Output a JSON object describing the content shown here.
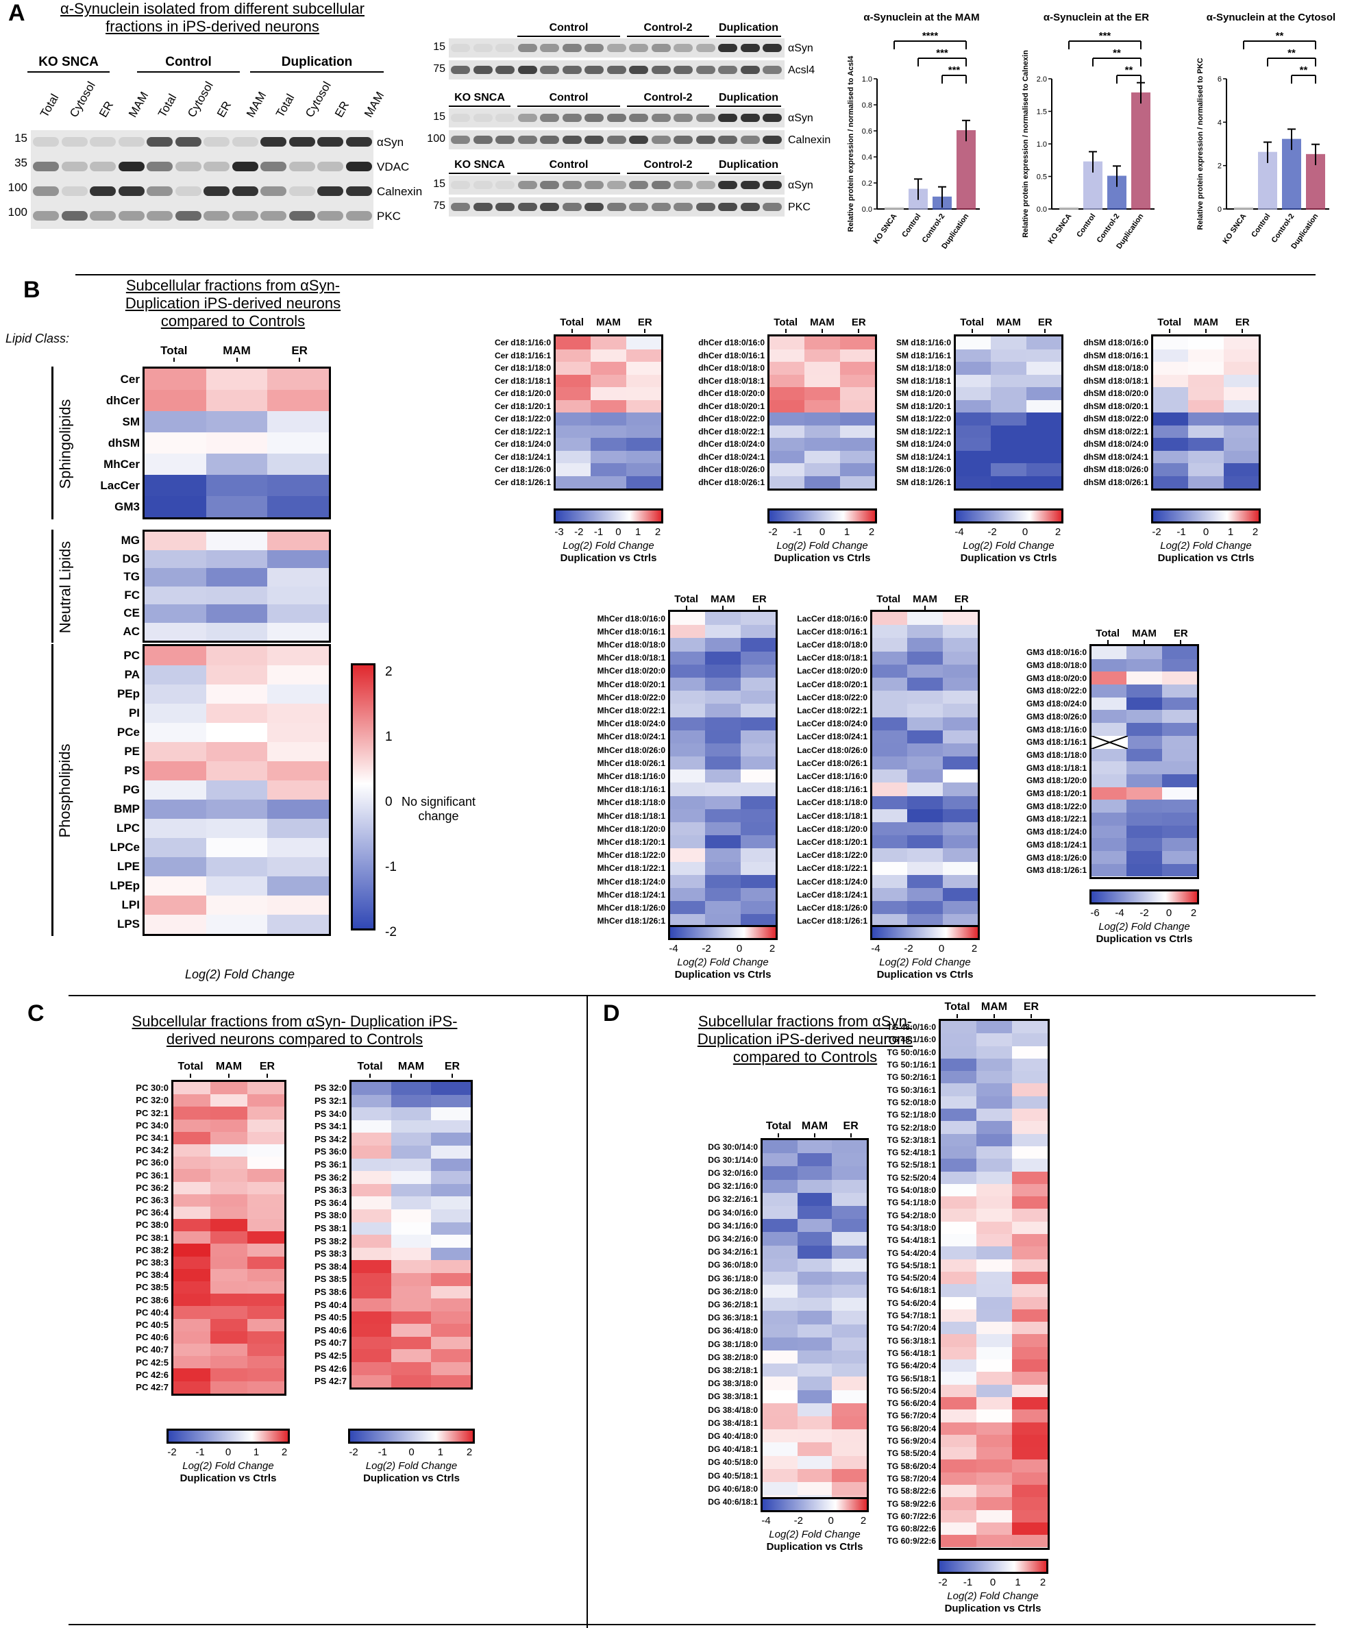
{
  "panels": {
    "a": "A",
    "b": "B",
    "c": "C",
    "d": "D"
  },
  "panelA": {
    "title": "α-Synuclein isolated from different subcellular fractions in iPS-derived neurons",
    "blot1": {
      "groups": [
        "KO SNCA",
        "Control",
        "Duplication"
      ],
      "lanes": [
        "Total",
        "Cytosol",
        "ER",
        "MAM",
        "Total",
        "Cytosol",
        "ER",
        "MAM",
        "Total",
        "Cytosol",
        "ER",
        "MAM"
      ],
      "markers": [
        "15",
        "35",
        "100",
        "100"
      ],
      "bands": [
        "αSyn",
        "VDAC",
        "Calnexin",
        "PKC"
      ]
    },
    "blot2": {
      "groups": [
        "KO SNCA",
        "Control",
        "Control-2",
        "Duplication"
      ],
      "rows": [
        {
          "markers": [
            "15",
            "75"
          ],
          "bands": [
            "αSyn",
            "Acsl4"
          ]
        },
        {
          "markers": [
            "15",
            "100"
          ],
          "bands": [
            "αSyn",
            "Calnexin"
          ]
        },
        {
          "markers": [
            "15",
            "75"
          ],
          "bands": [
            "αSyn",
            "PKC"
          ]
        }
      ]
    },
    "bars": [
      {
        "title": "α-Synuclein at the MAM",
        "ylabel": "Relative protein expression / normalised to Acsl4",
        "ylim": [
          0,
          1.0
        ],
        "ticks": [
          "0.0",
          "0.2",
          "0.4",
          "0.6",
          "0.8",
          "1.0"
        ],
        "categories": [
          "KO SNCA",
          "Control",
          "Control-2",
          "Duplication"
        ],
        "values": [
          0.0,
          0.15,
          0.09,
          0.6
        ],
        "sig": [
          "****",
          "***",
          "***"
        ]
      },
      {
        "title": "α-Synuclein at the ER",
        "ylabel": "Relative protein expression / normalised to Calnexin",
        "ylim": [
          0,
          2.0
        ],
        "ticks": [
          "0.0",
          "0.5",
          "1.0",
          "1.5",
          "2.0"
        ],
        "categories": [
          "KO SNCA",
          "Control",
          "Control-2",
          "Duplication"
        ],
        "values": [
          0.0,
          0.72,
          0.5,
          1.78
        ],
        "sig": [
          "***",
          "**",
          "**"
        ]
      },
      {
        "title": "α-Synuclein at the Cytosol",
        "ylabel": "Relative protein expression / normalised to PKC",
        "ylim": [
          0,
          6
        ],
        "ticks": [
          "0",
          "2",
          "4",
          "6"
        ],
        "categories": [
          "KO SNCA",
          "Control",
          "Control-2",
          "Duplication"
        ],
        "values": [
          0.0,
          2.6,
          3.2,
          2.5
        ],
        "sig": [
          "**",
          "**",
          "**"
        ]
      }
    ]
  },
  "panelB": {
    "title": "Subcellular fractions from αSyn-Duplication iPS-derived neurons compared to Controls",
    "lipid_class_label": "Lipid Class:",
    "columns": [
      "Total",
      "MAM",
      "ER"
    ],
    "groups": [
      {
        "name": "Sphingolipids",
        "rows": [
          "Cer",
          "dhCer",
          "SM",
          "dhSM",
          "MhCer",
          "LacCer",
          "GM3"
        ]
      },
      {
        "name": "Neutral Lipids",
        "rows": [
          "MG",
          "DG",
          "TG",
          "FC",
          "CE",
          "AC"
        ]
      },
      {
        "name": "Phospholipids",
        "rows": [
          "PC",
          "PA",
          "PEp",
          "PI",
          "PCe",
          "PE",
          "PS",
          "PG",
          "BMP",
          "LPC",
          "LPCe",
          "LPE",
          "LPEp",
          "LPI",
          "LPS"
        ]
      }
    ],
    "colorbar_ticks": [
      "2",
      "1",
      "0",
      "-1",
      "-2"
    ],
    "no_change": "No significant change",
    "axis_label": "Log(2) Fold Change",
    "sub_label": "Duplication vs Ctrls",
    "cer_rows": [
      "Cer d18:1/16:0",
      "Cer d18:1/16:1",
      "Cer d18:1/18:0",
      "Cer d18:1/18:1",
      "Cer d18:1/20:0",
      "Cer d18:1/20:1",
      "Cer d18:1/22:0",
      "Cer d18:1/22:1",
      "Cer d18:1/24:0",
      "Cer d18:1/24:1",
      "Cer d18:1/26:0",
      "Cer d18:1/26:1"
    ],
    "dhcer_rows": [
      "dhCer d18:0/16:0",
      "dhCer d18:0/16:1",
      "dhCer d18:0/18:0",
      "dhCer d18:0/18:1",
      "dhCer d18:0/20:0",
      "dhCer d18:0/20:1",
      "dhCer d18:0/22:0",
      "dhCer d18:0/22:1",
      "dhCer d18:0/24:0",
      "dhCer d18:0/24:1",
      "dhCer d18:0/26:0",
      "dhCer d18:0/26:1"
    ],
    "sm_rows": [
      "SM d18:1/16:0",
      "SM d18:1/16:1",
      "SM d18:1/18:0",
      "SM d18:1/18:1",
      "SM d18:1/20:0",
      "SM d18:1/20:1",
      "SM d18:1/22:0",
      "SM d18:1/22:1",
      "SM d18:1/24:0",
      "SM d18:1/24:1",
      "SM d18:1/26:0",
      "SM d18:1/26:1"
    ],
    "dhsm_rows": [
      "dhSM d18:0/16:0",
      "dhSM d18:0/16:1",
      "dhSM d18:0/18:0",
      "dhSM d18:0/18:1",
      "dhSM d18:0/20:0",
      "dhSM d18:0/20:1",
      "dhSM d18:0/22:0",
      "dhSM d18:0/22:1",
      "dhSM d18:0/24:0",
      "dhSM d18:0/24:1",
      "dhSM d18:0/26:0",
      "dhSM d18:0/26:1"
    ],
    "mhcer_rows": [
      "MhCer d18:0/16:0",
      "MhCer d18:0/16:1",
      "MhCer d18:0/18:0",
      "MhCer d18:0/18:1",
      "MhCer d18:0/20:0",
      "MhCer d18:0/20:1",
      "MhCer d18:0/22:0",
      "MhCer d18:0/22:1",
      "MhCer d18:0/24:0",
      "MhCer d18:0/24:1",
      "MhCer d18:0/26:0",
      "MhCer d18:0/26:1",
      "MhCer d18:1/16:0",
      "MhCer d18:1/16:1",
      "MhCer d18:1/18:0",
      "MhCer d18:1/18:1",
      "MhCer d18:1/20:0",
      "MhCer d18:1/20:1",
      "MhCer d18:1/22:0",
      "MhCer d18:1/22:1",
      "MhCer d18:1/24:0",
      "MhCer d18:1/24:1",
      "MhCer d18:1/26:0",
      "MhCer d18:1/26:1"
    ],
    "laccer_rows": [
      "LacCer d18:0/16:0",
      "LacCer d18:0/16:1",
      "LacCer d18:0/18:0",
      "LacCer d18:0/18:1",
      "LacCer d18:0/20:0",
      "LacCer d18:0/20:1",
      "LacCer d18:0/22:0",
      "LacCer d18:0/22:1",
      "LacCer d18:0/24:0",
      "LacCer d18:0/24:1",
      "LacCer d18:0/26:0",
      "LacCer d18:0/26:1",
      "LacCer d18:1/16:0",
      "LacCer d18:1/16:1",
      "LacCer d18:1/18:0",
      "LacCer d18:1/18:1",
      "LacCer d18:1/20:0",
      "LacCer d18:1/20:1",
      "LacCer d18:1/22:0",
      "LacCer d18:1/22:1",
      "LacCer d18:1/24:0",
      "LacCer d18:1/24:1",
      "LacCer d18:1/26:0",
      "LacCer d18:1/26:1"
    ],
    "gm3_rows": [
      "GM3 d18:0/16:0",
      "GM3 d18:0/18:0",
      "GM3 d18:0/20:0",
      "GM3 d18:0/22:0",
      "GM3 d18:0/24:0",
      "GM3 d18:0/26:0",
      "GM3 d18:1/16:0",
      "GM3 d18:1/16:1",
      "GM3 d18:1/18:0",
      "GM3 d18:1/18:1",
      "GM3 d18:1/20:0",
      "GM3 d18:1/20:1",
      "GM3 d18:1/22:0",
      "GM3 d18:1/22:1",
      "GM3 d18:1/24:0",
      "GM3 d18:1/24:1",
      "GM3 d18:1/26:0",
      "GM3 d18:1/26:1"
    ],
    "scales": {
      "cer": [
        "-3",
        "-2",
        "-1",
        "0",
        "1",
        "2"
      ],
      "dhcer": [
        "-2",
        "-1",
        "0",
        "1",
        "2"
      ],
      "sm": [
        "-4",
        "-2",
        "0",
        "2"
      ],
      "dhsm": [
        "-2",
        "-1",
        "0",
        "1",
        "2"
      ],
      "mhcer": [
        "-4",
        "-2",
        "0",
        "2"
      ],
      "laccer": [
        "-4",
        "-2",
        "0",
        "2"
      ],
      "gm3": [
        "-6",
        "-4",
        "-2",
        "0",
        "2"
      ]
    }
  },
  "panelC": {
    "title": "Subcellular fractions from αSyn- Duplication iPS-derived neurons compared to Controls",
    "columns": [
      "Total",
      "MAM",
      "ER"
    ],
    "pc_rows": [
      "PC 30:0",
      "PC 32:0",
      "PC 32:1",
      "PC 34:0",
      "PC 34:1",
      "PC 34:2",
      "PC 36:0",
      "PC 36:1",
      "PC 36:2",
      "PC 36:3",
      "PC 36:4",
      "PC 38:0",
      "PC 38:1",
      "PC 38:2",
      "PC 38:3",
      "PC 38:4",
      "PC 38:5",
      "PC 38:6",
      "PC 40:4",
      "PC 40:5",
      "PC 40:6",
      "PC 40:7",
      "PC 42:5",
      "PC 42:6",
      "PC 42:7"
    ],
    "ps_rows": [
      "PS 32:0",
      "PS 32:1",
      "PS 34:0",
      "PS 34:1",
      "PS 34:2",
      "PS 36:0",
      "PS 36:1",
      "PS 36:2",
      "PS 36:3",
      "PS 36:4",
      "PS 38:0",
      "PS 38:1",
      "PS 38:2",
      "PS 38:3",
      "PS 38:4",
      "PS 38:5",
      "PS 38:6",
      "PS 40:4",
      "PS 40:5",
      "PS 40:6",
      "PS 40:7",
      "PS 42:5",
      "PS 42:6",
      "PS 42:7"
    ],
    "pc_scale": [
      "-2",
      "-1",
      "0",
      "1",
      "2"
    ],
    "ps_scale": [
      "-2",
      "-1",
      "0",
      "1",
      "2"
    ],
    "axis_label": "Log(2) Fold Change",
    "sub_label": "Duplication vs Ctrls"
  },
  "panelD": {
    "title": "Subcellular fractions from αSyn-Duplication iPS-derived neurons compared to Controls",
    "columns": [
      "Total",
      "MAM",
      "ER"
    ],
    "dg_rows": [
      "DG 30:0/14:0",
      "DG 30:1/14:0",
      "DG 32:0/16:0",
      "DG 32:1/16:0",
      "DG 32:2/16:1",
      "DG 34:0/16:0",
      "DG 34:1/16:0",
      "DG 34:2/16:0",
      "DG 34:2/16:1",
      "DG 36:0/18:0",
      "DG 36:1/18:0",
      "DG 36:2/18:0",
      "DG 36:2/18:1",
      "DG 36:3/18:1",
      "DG 36:4/18:0",
      "DG 38:1/18:0",
      "DG 38:2/18:0",
      "DG 38:2/18:1",
      "DG 38:3/18:0",
      "DG 38:3/18:1",
      "DG 38:4/18:0",
      "DG 38:4/18:1",
      "DG 40:4/18:0",
      "DG 40:4/18:1",
      "DG 40:5/18:0",
      "DG 40:5/18:1",
      "DG 40:6/18:0",
      "DG 40:6/18:1"
    ],
    "tg_rows": [
      "TG 48:0/16:0",
      "TG 48:1/16:0",
      "TG 50:0/16:0",
      "TG 50:1/16:1",
      "TG 50:2/16:1",
      "TG 50:3/16:1",
      "TG 52:0/18:0",
      "TG 52:1/18:0",
      "TG 52:2/18:0",
      "TG 52:3/18:1",
      "TG 52:4/18:1",
      "TG 52:5/18:1",
      "TG 52:5/20:4",
      "TG 54:0/18:0",
      "TG 54:1/18:0",
      "TG 54:2/18:0",
      "TG 54:3/18:0",
      "TG 54:4/18:1",
      "TG 54:4/20:4",
      "TG 54:5/18:1",
      "TG 54:5/20:4",
      "TG 54:6/18:1",
      "TG 54:6/20:4",
      "TG 54:7/18:1",
      "TG 54:7/20:4",
      "TG 56:3/18:1",
      "TG 56:4/18:1",
      "TG 56:4/20:4",
      "TG 56:5/18:1",
      "TG 56:5/20:4",
      "TG 56:6/20:4",
      "TG 56:7/20:4",
      "TG 56:8/20:4",
      "TG 56:9/20:4",
      "TG 58:5/20:4",
      "TG 58:6/20:4",
      "TG 58:7/20:4",
      "TG 58:8/22:6",
      "TG 58:9/22:6",
      "TG 60:7/22:6",
      "TG 60:8/22:6",
      "TG 60:9/22:6"
    ],
    "dg_scale": [
      "-4",
      "-2",
      "0",
      "2"
    ],
    "tg_scale": [
      "-2",
      "-1",
      "0",
      "1",
      "2"
    ],
    "axis_label": "Log(2) Fold Change",
    "sub_label": "Duplication vs Ctrls"
  }
}
